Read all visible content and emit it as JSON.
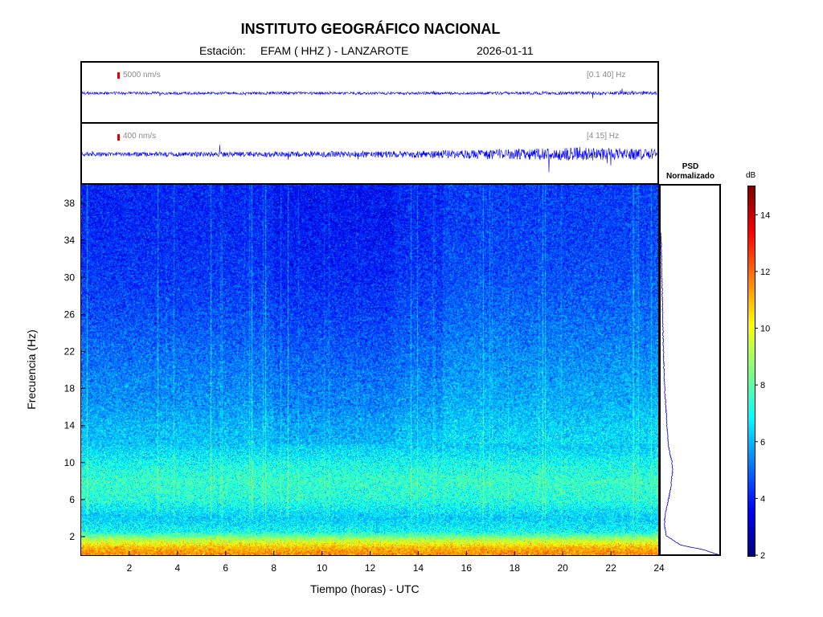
{
  "header": {
    "title": "INSTITUTO GEOGRÁFICO NACIONAL",
    "station_label": "Estación:",
    "station": "EFAM ( HHZ ) - LANZAROTE",
    "date": "2026-01-11"
  },
  "colors": {
    "trace": "#0000ff",
    "scale_bar": "#e00000",
    "psd_line": "#0000cc",
    "colormap": "jet"
  },
  "chart_data": [
    {
      "type": "line",
      "name": "seismogram-broadband",
      "amplitude_label": "5000 nm/s",
      "band_label": "[0.1 40] Hz",
      "x_range": [
        0,
        24
      ],
      "envelope": {
        "hours": [
          0,
          4,
          8,
          12,
          16,
          20,
          24
        ],
        "relative_amplitude": [
          0.8,
          0.8,
          0.8,
          0.8,
          0.8,
          0.9,
          0.9
        ]
      }
    },
    {
      "type": "line",
      "name": "seismogram-filtered",
      "amplitude_label": "400 nm/s",
      "band_label": "[4 15] Hz",
      "x_range": [
        0,
        24
      ],
      "envelope": {
        "hours": [
          0,
          2,
          4,
          6,
          8,
          10,
          12,
          14,
          16,
          18,
          19,
          20,
          20.8,
          22,
          24
        ],
        "relative_amplitude": [
          0.35,
          0.35,
          0.4,
          0.45,
          0.45,
          0.5,
          0.55,
          0.6,
          0.75,
          0.85,
          1.0,
          1.05,
          1.2,
          1.0,
          0.85
        ]
      }
    },
    {
      "type": "heatmap",
      "name": "spectrogram",
      "xlabel": "Tiempo (horas) - UTC",
      "ylabel": "Frecuencia  (Hz)",
      "x_ticks": [
        2,
        4,
        6,
        8,
        10,
        12,
        14,
        16,
        18,
        20,
        22,
        24
      ],
      "y_ticks": [
        2,
        6,
        10,
        14,
        18,
        22,
        26,
        30,
        34,
        38
      ],
      "xlim": [
        0,
        24
      ],
      "ylim": [
        0,
        40
      ],
      "color_unit": "dB",
      "clim": [
        2,
        15
      ],
      "colorbar_ticks": [
        2,
        4,
        6,
        8,
        10,
        12,
        14
      ],
      "band_profile": {
        "freq_hz": [
          0.2,
          0.8,
          1.5,
          2.5,
          4,
          6,
          8,
          10,
          12,
          14,
          16,
          18,
          22,
          26,
          30,
          34,
          38,
          40
        ],
        "mean_db": [
          11.5,
          11.0,
          9.5,
          7.0,
          6.3,
          7.3,
          7.5,
          7.0,
          6.2,
          6.0,
          5.6,
          5.4,
          5.0,
          4.6,
          4.3,
          4.1,
          4.0,
          4.0
        ]
      }
    },
    {
      "type": "line",
      "name": "psd-normalized",
      "title": "PSD Normalizado",
      "freq_hz": [
        0,
        0.5,
        1,
        2,
        3,
        4,
        5,
        6,
        7,
        8,
        9,
        10,
        11,
        12,
        14,
        16,
        18,
        20,
        22,
        24,
        26,
        28,
        30,
        32,
        34,
        35
      ],
      "value": [
        1.0,
        0.75,
        0.35,
        0.1,
        0.07,
        0.07,
        0.1,
        0.14,
        0.17,
        0.19,
        0.21,
        0.2,
        0.16,
        0.13,
        0.11,
        0.09,
        0.07,
        0.06,
        0.05,
        0.04,
        0.035,
        0.03,
        0.02,
        0.015,
        0.01,
        0.0
      ]
    }
  ]
}
